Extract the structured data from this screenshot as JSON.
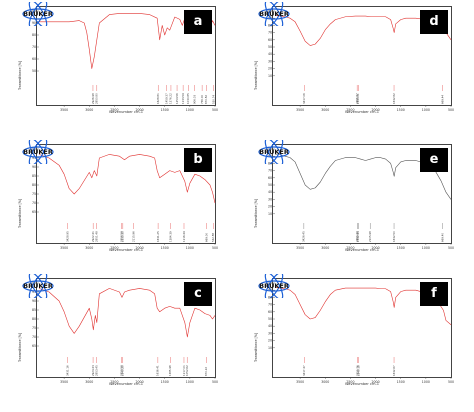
{
  "figure": {
    "logo_text": "BRUKER",
    "y_axis_label": "Transmittance [%]",
    "x_axis_label": "Wavenumber cm-1"
  },
  "chart_data": [
    {
      "type": "line",
      "panel_label": "a",
      "color": "#e0302e",
      "xlim": [
        4000,
        500
      ],
      "ylim": [
        40,
        100
      ],
      "x_ticks": [
        3500,
        3000,
        2500,
        2000,
        1500,
        1000,
        500
      ],
      "y_ticks": [
        50,
        60,
        70,
        80,
        90,
        100
      ],
      "x": [
        4000,
        3800,
        3600,
        3400,
        3200,
        3100,
        3050,
        3000,
        2950,
        2900,
        2800,
        2600,
        2400,
        2200,
        2000,
        1800,
        1650,
        1600,
        1550,
        1500,
        1450,
        1400,
        1300,
        1200,
        1150,
        1100,
        1050,
        1000,
        950,
        900,
        850,
        800,
        750,
        700,
        650,
        600,
        550,
        500
      ],
      "y": [
        91,
        91,
        91,
        91,
        92,
        90,
        82,
        68,
        52,
        62,
        90,
        97,
        98,
        98,
        98,
        97,
        94,
        76,
        88,
        80,
        86,
        84,
        95,
        93,
        88,
        94,
        90,
        96,
        92,
        84,
        96,
        90,
        92,
        82,
        90,
        86,
        92,
        88
      ],
      "peaks": [
        "2926.98",
        "2850.80",
        "1628.81",
        "1459.37",
        "1376.22",
        "1254.56",
        "1133.59",
        "1030.85",
        "906.03",
        "756.00",
        "670.82",
        "530.74"
      ]
    },
    {
      "type": "line",
      "panel_label": "b",
      "color": "#e0302e",
      "xlim": [
        4000,
        500
      ],
      "ylim": [
        60,
        100
      ],
      "x_ticks": [
        3500,
        3000,
        2500,
        2000,
        1500,
        1000,
        500
      ],
      "y_ticks": [
        65,
        70,
        75,
        80,
        85,
        90,
        95,
        100
      ],
      "x": [
        4000,
        3800,
        3600,
        3500,
        3400,
        3300,
        3200,
        3000,
        2950,
        2900,
        2850,
        2800,
        2600,
        2400,
        2300,
        2200,
        2000,
        1800,
        1700,
        1650,
        1600,
        1500,
        1400,
        1300,
        1200,
        1100,
        1050,
        1000,
        900,
        800,
        700,
        600,
        550,
        500
      ],
      "y": [
        97,
        95,
        91,
        86,
        78,
        75,
        78,
        87,
        84,
        88,
        85,
        95,
        97,
        96,
        94,
        96,
        97,
        96,
        95,
        88,
        84,
        86,
        88,
        87,
        88,
        82,
        76,
        81,
        86,
        85,
        83,
        80,
        76,
        70
      ],
      "peaks": [
        "3428.95",
        "2922.41",
        "2851.48",
        "2358.59",
        "2333.35",
        "2115.96",
        "1631.25",
        "1384.39",
        "1116.49",
        "669.00",
        "532.88"
      ]
    },
    {
      "type": "line",
      "panel_label": "c",
      "color": "#e0302e",
      "xlim": [
        4000,
        500
      ],
      "ylim": [
        60,
        100
      ],
      "x_ticks": [
        3500,
        3000,
        2500,
        2000,
        1500,
        1000,
        500
      ],
      "y_ticks": [
        65,
        70,
        75,
        80,
        85,
        90,
        95,
        100
      ],
      "x": [
        4000,
        3800,
        3600,
        3500,
        3400,
        3300,
        3200,
        3000,
        2950,
        2920,
        2880,
        2850,
        2800,
        2600,
        2400,
        2350,
        2300,
        2200,
        2000,
        1800,
        1700,
        1650,
        1600,
        1500,
        1400,
        1300,
        1200,
        1100,
        1050,
        1000,
        900,
        800,
        700,
        600,
        550,
        500
      ],
      "y": [
        97,
        95,
        90,
        84,
        76,
        72,
        76,
        86,
        80,
        74,
        82,
        78,
        94,
        97,
        95,
        92,
        95,
        96,
        97,
        96,
        94,
        86,
        84,
        86,
        87,
        86,
        86,
        78,
        70,
        78,
        86,
        85,
        83,
        82,
        80,
        82
      ],
      "peaks": [
        "3431.16",
        "2924.43",
        "2853.45",
        "2359.58",
        "2340.20",
        "1636.41",
        "1385.98",
        "1117.01",
        "1052.62",
        "670.22"
      ]
    },
    {
      "type": "line",
      "panel_label": "d",
      "color": "#e0302e",
      "xlim": [
        4000,
        500
      ],
      "ylim": [
        0,
        100
      ],
      "x_ticks": [
        3500,
        3000,
        2500,
        2000,
        1500,
        1000,
        500
      ],
      "y_ticks": [
        10,
        20,
        30,
        40,
        50,
        60,
        70,
        80,
        90,
        100
      ],
      "x": [
        4000,
        3900,
        3800,
        3700,
        3600,
        3500,
        3400,
        3300,
        3200,
        3100,
        3000,
        2900,
        2800,
        2600,
        2400,
        2200,
        2100,
        2000,
        1900,
        1800,
        1700,
        1650,
        1630,
        1600,
        1500,
        1400,
        1200,
        1000,
        800,
        600,
        500
      ],
      "y": [
        94,
        93,
        92,
        90,
        85,
        72,
        58,
        52,
        54,
        62,
        74,
        82,
        88,
        92,
        93,
        93,
        92,
        92,
        92,
        92,
        88,
        76,
        70,
        82,
        88,
        90,
        90,
        88,
        84,
        70,
        60
      ],
      "peaks": [
        "3417.06",
        "2365.87",
        "2343.01",
        "1632.82",
        "669.44"
      ]
    },
    {
      "type": "line",
      "panel_label": "e",
      "color": "#555555",
      "xlim": [
        4000,
        500
      ],
      "ylim": [
        0,
        100
      ],
      "x_ticks": [
        3500,
        3000,
        2500,
        2000,
        1500,
        1000,
        500
      ],
      "y_ticks": [
        10,
        20,
        30,
        40,
        50,
        60,
        70,
        80,
        90,
        100
      ],
      "x": [
        4000,
        3900,
        3800,
        3700,
        3600,
        3500,
        3400,
        3300,
        3200,
        3100,
        3000,
        2900,
        2800,
        2600,
        2400,
        2300,
        2200,
        2100,
        2000,
        1900,
        1800,
        1700,
        1650,
        1630,
        1600,
        1500,
        1400,
        1200,
        1000,
        800,
        700,
        600,
        500
      ],
      "y": [
        92,
        92,
        90,
        88,
        82,
        66,
        50,
        44,
        46,
        54,
        66,
        76,
        84,
        88,
        88,
        86,
        84,
        86,
        88,
        88,
        86,
        80,
        68,
        62,
        74,
        82,
        84,
        84,
        80,
        68,
        56,
        40,
        30
      ],
      "peaks": [
        "3426.45",
        "2363.49",
        "2342.94",
        "2105.98",
        "1632.50",
        "669.40"
      ]
    },
    {
      "type": "line",
      "panel_label": "f",
      "color": "#e0302e",
      "xlim": [
        4000,
        500
      ],
      "ylim": [
        0,
        100
      ],
      "x_ticks": [
        3500,
        3000,
        2500,
        2000,
        1500,
        1000,
        500
      ],
      "y_ticks": [
        10,
        20,
        30,
        40,
        50,
        60,
        70,
        80,
        90,
        100
      ],
      "x": [
        4000,
        3900,
        3800,
        3700,
        3600,
        3500,
        3400,
        3300,
        3200,
        3100,
        3000,
        2900,
        2800,
        2600,
        2400,
        2200,
        2000,
        1900,
        1800,
        1700,
        1650,
        1630,
        1600,
        1500,
        1400,
        1200,
        1000,
        800,
        650,
        600,
        500
      ],
      "y": [
        94,
        93,
        92,
        90,
        84,
        70,
        56,
        50,
        52,
        62,
        74,
        84,
        90,
        93,
        93,
        93,
        93,
        92,
        92,
        88,
        74,
        66,
        80,
        88,
        90,
        90,
        86,
        78,
        62,
        48,
        42
      ],
      "peaks": [
        "3417.47",
        "2359.76",
        "2340.18",
        "1632.67"
      ]
    }
  ]
}
